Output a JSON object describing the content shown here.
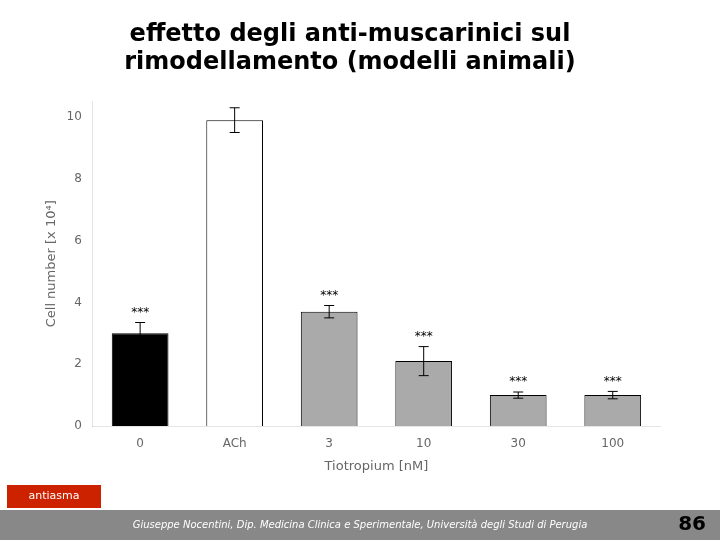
{
  "chart_data": {
    "type": "bar",
    "title": "effetto degli anti-muscarinici sul\nrimodellamento (modelli animali)",
    "xlabel": "Tiotropium [nM]",
    "ylabel": "Cell number [x 10⁴]",
    "categories": [
      "0",
      "ACh",
      "3",
      "10",
      "30",
      "100"
    ],
    "values": [
      3.0,
      9.9,
      3.7,
      2.1,
      1.0,
      1.0
    ],
    "errors": [
      0.35,
      0.4,
      0.2,
      0.47,
      0.1,
      0.12
    ],
    "colors": [
      "#000000",
      "#ffffff",
      "#aaaaaa",
      "#aaaaaa",
      "#aaaaaa",
      "#aaaaaa"
    ],
    "ylim": [
      0,
      10.5
    ],
    "yticks": [
      0,
      2,
      4,
      6,
      8,
      10
    ],
    "grid": false,
    "annotations": [
      {
        "category": "0",
        "text": "***"
      },
      {
        "category": "3",
        "text": "***"
      },
      {
        "category": "10",
        "text": "***"
      },
      {
        "category": "30",
        "text": "***"
      },
      {
        "category": "100",
        "text": "***"
      }
    ],
    "footer": "Giuseppe Nocentini, Dip. Medicina Clinica e Sperimentale, Università degli Studi di Perugia",
    "badge": "antiasma",
    "page_number": "86"
  }
}
